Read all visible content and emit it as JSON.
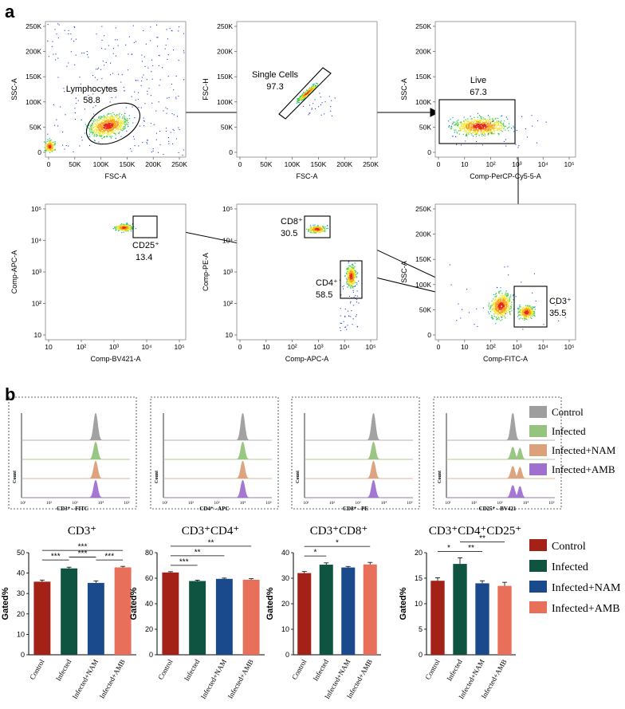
{
  "panel_labels": {
    "a": "a",
    "b": "b"
  },
  "chart_data": [
    {
      "type": "scatter",
      "panel": "a",
      "title": "Flow cytometry gating strategy",
      "plots": [
        {
          "id": "p1",
          "xlabel": "FSC-A",
          "ylabel": "SSC-A",
          "xticks": [
            "0",
            "50K",
            "100K",
            "150K",
            "200K",
            "250K"
          ],
          "yticks": [
            "0",
            "50K",
            "100K",
            "150K",
            "200K",
            "250K"
          ],
          "gate": "Lymphocytes",
          "gate_value": "58.8"
        },
        {
          "id": "p2",
          "xlabel": "FSC-A",
          "ylabel": "FSC-H",
          "xticks": [
            "0",
            "50K",
            "100K",
            "150K",
            "200K",
            "250K"
          ],
          "yticks": [
            "0",
            "50K",
            "100K",
            "150K",
            "200K",
            "250K"
          ],
          "gate": "Single Cells",
          "gate_value": "97.3"
        },
        {
          "id": "p3",
          "xlabel": "Comp-PerCP-Cy5-5-A",
          "ylabel": "SSC-A",
          "xticks": [
            "0",
            "10",
            "10²",
            "10³",
            "10⁴",
            "10⁵"
          ],
          "yticks": [
            "0",
            "50K",
            "100K",
            "150K",
            "200K",
            "250K"
          ],
          "gate": "Live",
          "gate_value": "67.3"
        },
        {
          "id": "p4",
          "xlabel": "Comp-FITC-A",
          "ylabel": "SSC-A",
          "xticks": [
            "0",
            "10",
            "10²",
            "10³",
            "10⁴",
            "10⁵"
          ],
          "yticks": [
            "0",
            "50K",
            "100K",
            "150K",
            "200K",
            "250K"
          ],
          "gate": "CD3⁺",
          "gate_value": "35.5"
        },
        {
          "id": "p5",
          "xlabel": "Comp-APC-A",
          "ylabel": "Comp-PE-A",
          "xticks": [
            "0",
            "10",
            "10²",
            "10³",
            "10⁴",
            "10⁵"
          ],
          "yticks": [
            "10",
            "10²",
            "10³",
            "10⁴",
            "10⁵"
          ],
          "gates": [
            {
              "gate": "CD8⁺",
              "gate_value": "30.5"
            },
            {
              "gate": "CD4⁺",
              "gate_value": "58.5"
            }
          ]
        },
        {
          "id": "p6",
          "xlabel": "Comp-BV421-A",
          "ylabel": "Comp-APC-A",
          "xticks": [
            "10",
            "10²",
            "10³",
            "10⁴",
            "10⁵"
          ],
          "yticks": [
            "10",
            "10²",
            "10³",
            "10⁴",
            "10⁵"
          ],
          "gate": "CD25⁺",
          "gate_value": "13.4"
        }
      ]
    },
    {
      "type": "area",
      "panel": "b-histograms",
      "series_names": [
        "Control",
        "Infected",
        "Infected+NAM",
        "Infected+AMB"
      ],
      "colors": [
        "#9e9e9e",
        "#94c47d",
        "#dca07a",
        "#a070d0"
      ],
      "ylabel": "Count",
      "ticks": [
        "10¹",
        "10²",
        "10³",
        "10⁴",
        "10⁵"
      ],
      "histograms": [
        {
          "xlabel": "CD3⁺ - FITC",
          "peaks_log10": [
            3.8,
            3.8,
            3.8,
            3.8
          ],
          "second_peak": false
        },
        {
          "xlabel": "CD4⁺ - APC",
          "peaks_log10": [
            4.0,
            4.0,
            4.0,
            4.0
          ],
          "second_peak": false
        },
        {
          "xlabel": "CD8⁺ - PE",
          "peaks_log10": [
            3.6,
            3.6,
            3.6,
            3.6
          ],
          "second_peak": false
        },
        {
          "xlabel": "CD25⁺ - BV421",
          "peaks_log10": [
            3.5,
            3.5,
            3.5,
            3.5
          ],
          "second_peak": true
        }
      ]
    },
    {
      "type": "bar",
      "panel": "b-bars",
      "categories": [
        "Control",
        "Infected",
        "Infected+NAM",
        "Infected+AMB"
      ],
      "colors": [
        "#a32116",
        "#0f5440",
        "#1b4a8c",
        "#e8705a"
      ],
      "legend": [
        "Control",
        "Infected",
        "Infected+NAM",
        "Infected+AMB"
      ],
      "ylabel": "Gated%",
      "charts": [
        {
          "title": "CD3⁺",
          "values": [
            35.8,
            42.3,
            35.2,
            42.8
          ],
          "errors": [
            0.8,
            0.6,
            1.0,
            0.5
          ],
          "ylim": [
            0,
            50
          ],
          "yticks": [
            "0",
            "10",
            "20",
            "30",
            "40",
            "50"
          ],
          "sig": [
            {
              "from": 0,
              "to": 1,
              "label": "***",
              "level": 0
            },
            {
              "from": 0,
              "to": 3,
              "label": "***",
              "level": 1
            },
            {
              "from": 1,
              "to": 2,
              "label": "***",
              "level": 0.3
            },
            {
              "from": 2,
              "to": 3,
              "label": "***",
              "level": 0
            }
          ]
        },
        {
          "title": "CD3⁺CD4⁺",
          "values": [
            64.5,
            57.8,
            59.5,
            58.8
          ],
          "errors": [
            0.6,
            0.7,
            0.6,
            0.8
          ],
          "ylim": [
            0,
            80
          ],
          "yticks": [
            "0",
            "20",
            "40",
            "60",
            "80"
          ],
          "sig": [
            {
              "from": 0,
              "to": 1,
              "label": "***",
              "level": 0
            },
            {
              "from": 0,
              "to": 2,
              "label": "**",
              "level": 1
            },
            {
              "from": 0,
              "to": 3,
              "label": "**",
              "level": 2
            }
          ]
        },
        {
          "title": "CD3⁺CD8⁺",
          "values": [
            32.0,
            35.3,
            34.2,
            35.4
          ],
          "errors": [
            0.6,
            0.7,
            0.4,
            0.8
          ],
          "ylim": [
            0,
            40
          ],
          "yticks": [
            "0",
            "10",
            "20",
            "30",
            "40"
          ],
          "sig": [
            {
              "from": 0,
              "to": 1,
              "label": "*",
              "level": 0
            },
            {
              "from": 0,
              "to": 3,
              "label": "*",
              "level": 1
            }
          ]
        },
        {
          "title": "CD3⁺CD4⁺CD25⁺",
          "values": [
            14.5,
            17.8,
            14.0,
            13.5
          ],
          "errors": [
            0.6,
            1.2,
            0.5,
            0.7
          ],
          "ylim": [
            0,
            20
          ],
          "yticks": [
            "0",
            "5",
            "10",
            "15",
            "20"
          ],
          "sig": [
            {
              "from": 0,
              "to": 1,
              "label": "*",
              "level": 0
            },
            {
              "from": 1,
              "to": 2,
              "label": "**",
              "level": 0
            },
            {
              "from": 1,
              "to": 3,
              "label": "**",
              "level": 1
            }
          ]
        }
      ]
    }
  ]
}
